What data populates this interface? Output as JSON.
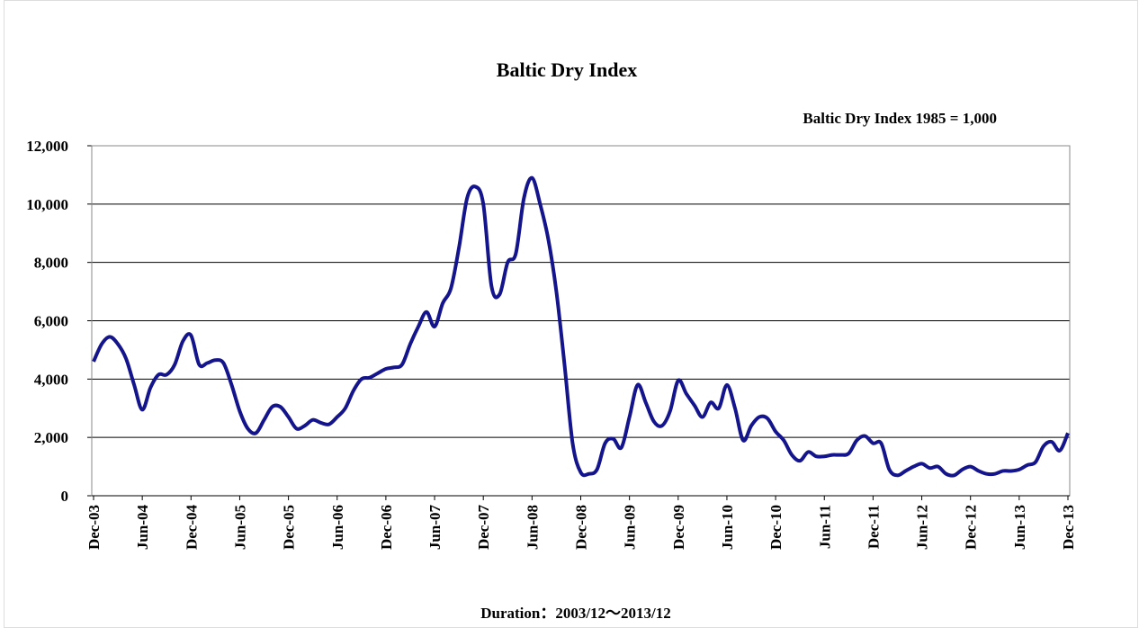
{
  "chart_data": {
    "type": "line",
    "title": "Baltic Dry Index",
    "subtitle": "Baltic Dry Index 1985 = 1,000",
    "footnote": "Duration：2003/12～2013/12",
    "color": "#14148c",
    "grid": true,
    "ylim": [
      0,
      12000
    ],
    "yticks": [
      0,
      {
        "value": 2000,
        "label": "2,000"
      },
      {
        "value": 4000,
        "label": "4,000"
      },
      {
        "value": 6000,
        "label": "6,000"
      },
      {
        "value": 8000,
        "label": "8,000"
      },
      {
        "value": 10000,
        "label": "10,000"
      },
      {
        "value": 12000,
        "label": "12,000"
      }
    ],
    "categories": [
      "Dec-03",
      null,
      null,
      null,
      null,
      null,
      "Jun-04",
      null,
      null,
      null,
      null,
      null,
      "Dec-04",
      null,
      null,
      null,
      null,
      null,
      "Jun-05",
      null,
      null,
      null,
      null,
      null,
      "Dec-05",
      null,
      null,
      null,
      null,
      null,
      "Jun-06",
      null,
      null,
      null,
      null,
      null,
      "Dec-06",
      null,
      null,
      null,
      null,
      null,
      "Jun-07",
      null,
      null,
      null,
      null,
      null,
      "Dec-07",
      null,
      null,
      null,
      null,
      null,
      "Jun-08",
      null,
      null,
      null,
      null,
      null,
      "Dec-08",
      null,
      null,
      null,
      null,
      null,
      "Jun-09",
      null,
      null,
      null,
      null,
      null,
      "Dec-09",
      null,
      null,
      null,
      null,
      null,
      "Jun-10",
      null,
      null,
      null,
      null,
      null,
      "Dec-10",
      null,
      null,
      null,
      null,
      null,
      "Jun-11",
      null,
      null,
      null,
      null,
      null,
      "Dec-11",
      null,
      null,
      null,
      null,
      null,
      "Jun-12",
      null,
      null,
      null,
      null,
      null,
      "Dec-12",
      null,
      null,
      null,
      null,
      null,
      "Jun-13",
      null,
      null,
      null,
      null,
      null,
      "Dec-13"
    ],
    "values": [
      4600,
      5200,
      5450,
      5200,
      4700,
      3800,
      2950,
      3700,
      4150,
      4150,
      4500,
      5300,
      5500,
      4500,
      4550,
      4650,
      4550,
      3800,
      2900,
      2300,
      2150,
      2600,
      3050,
      3050,
      2700,
      2300,
      2400,
      2600,
      2500,
      2450,
      2700,
      3000,
      3600,
      4000,
      4050,
      4200,
      4350,
      4400,
      4500,
      5200,
      5800,
      6300,
      5800,
      6600,
      7100,
      8500,
      10200,
      10600,
      10000,
      7200,
      6900,
      8000,
      8300,
      10200,
      10900,
      10000,
      8800,
      7000,
      4500,
      1800,
      800,
      750,
      900,
      1800,
      1950,
      1650,
      2700,
      3800,
      3200,
      2550,
      2400,
      2900,
      3950,
      3500,
      3100,
      2700,
      3200,
      3000,
      3800,
      3000,
      1900,
      2400,
      2700,
      2650,
      2200,
      1900,
      1400,
      1200,
      1500,
      1350,
      1350,
      1400,
      1400,
      1450,
      1900,
      2050,
      1800,
      1800,
      900,
      700,
      850,
      1000,
      1100,
      950,
      1000,
      750,
      700,
      900,
      1000,
      850,
      750,
      750,
      850,
      850,
      900,
      1050,
      1150,
      1700,
      1850,
      1550,
      2150
    ]
  }
}
